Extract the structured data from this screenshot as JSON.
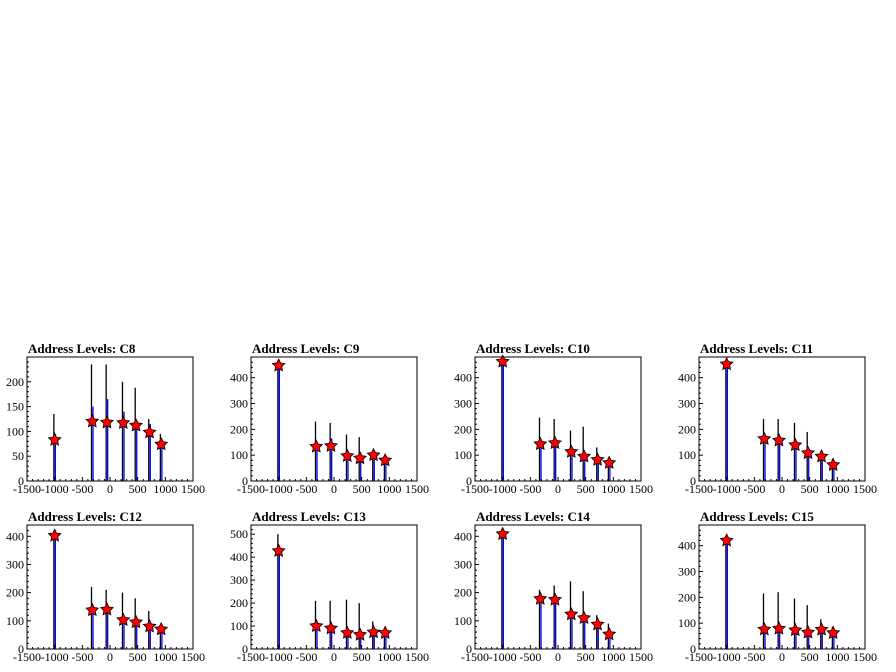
{
  "chart_data": [
    {
      "type": "bar",
      "title": "Address Levels: C8",
      "xlim": [
        -1500,
        1500
      ],
      "ylim": [
        0,
        250
      ],
      "xticks": [
        -1500,
        -1000,
        -500,
        0,
        500,
        1000,
        1500
      ],
      "yticks": [
        0,
        50,
        100,
        150,
        200
      ],
      "xtick_labels": [
        "-1500",
        "-1000",
        "-500",
        "0",
        "500",
        "1000",
        "1500"
      ],
      "ytick_labels": [
        "0",
        "50",
        "100",
        "150",
        "200"
      ],
      "peaks": [
        {
          "x": -1000,
          "black": 135,
          "blue": 95
        },
        {
          "x": -320,
          "black": 235,
          "blue": 150
        },
        {
          "x": -55,
          "black": 235,
          "blue": 165
        },
        {
          "x": 240,
          "black": 200,
          "blue": 140
        },
        {
          "x": 470,
          "black": 188,
          "blue": 115
        },
        {
          "x": 715,
          "black": 125,
          "blue": 115
        },
        {
          "x": 925,
          "black": 95,
          "blue": 85
        }
      ],
      "markers": [
        {
          "x": -1000,
          "y": 83
        },
        {
          "x": -320,
          "y": 120
        },
        {
          "x": -55,
          "y": 118
        },
        {
          "x": 240,
          "y": 117
        },
        {
          "x": 470,
          "y": 112
        },
        {
          "x": 715,
          "y": 98
        },
        {
          "x": 925,
          "y": 74
        }
      ]
    },
    {
      "type": "bar",
      "title": "Address Levels: C9",
      "xlim": [
        -1500,
        1500
      ],
      "ylim": [
        0,
        480
      ],
      "xticks": [
        -1500,
        -1000,
        -500,
        0,
        500,
        1000,
        1500
      ],
      "yticks": [
        0,
        100,
        200,
        300,
        400
      ],
      "xtick_labels": [
        "-1500",
        "-1000",
        "-500",
        "0",
        "500",
        "1000",
        "1500"
      ],
      "ytick_labels": [
        "0",
        "100",
        "200",
        "300",
        "400"
      ],
      "peaks": [
        {
          "x": -1000,
          "black": 450,
          "blue": 450
        },
        {
          "x": -320,
          "black": 230,
          "blue": 150
        },
        {
          "x": -55,
          "black": 225,
          "blue": 165
        },
        {
          "x": 240,
          "black": 180,
          "blue": 110
        },
        {
          "x": 470,
          "black": 170,
          "blue": 110
        },
        {
          "x": 715,
          "black": 110,
          "blue": 100
        },
        {
          "x": 925,
          "black": 90,
          "blue": 80
        }
      ],
      "markers": [
        {
          "x": -1000,
          "y": 447
        },
        {
          "x": -320,
          "y": 133
        },
        {
          "x": -55,
          "y": 136
        },
        {
          "x": 240,
          "y": 97
        },
        {
          "x": 470,
          "y": 88
        },
        {
          "x": 715,
          "y": 100
        },
        {
          "x": 925,
          "y": 80
        }
      ]
    },
    {
      "type": "bar",
      "title": "Address Levels: C10",
      "xlim": [
        -1500,
        1500
      ],
      "ylim": [
        0,
        480
      ],
      "xticks": [
        -1500,
        -1000,
        -500,
        0,
        500,
        1000,
        1500
      ],
      "yticks": [
        0,
        100,
        200,
        300,
        400
      ],
      "xtick_labels": [
        "-1500",
        "-1000",
        "-500",
        "0",
        "500",
        "1000",
        "1500"
      ],
      "ytick_labels": [
        "0",
        "100",
        "200",
        "300",
        "400"
      ],
      "peaks": [
        {
          "x": -1000,
          "black": 465,
          "blue": 465
        },
        {
          "x": -320,
          "black": 245,
          "blue": 155
        },
        {
          "x": -55,
          "black": 240,
          "blue": 160
        },
        {
          "x": 240,
          "black": 195,
          "blue": 125
        },
        {
          "x": 470,
          "black": 210,
          "blue": 105
        },
        {
          "x": 715,
          "black": 130,
          "blue": 85
        },
        {
          "x": 925,
          "black": 80,
          "blue": 70
        }
      ],
      "markers": [
        {
          "x": -1000,
          "y": 462
        },
        {
          "x": -320,
          "y": 143
        },
        {
          "x": -55,
          "y": 147
        },
        {
          "x": 240,
          "y": 113
        },
        {
          "x": 470,
          "y": 95
        },
        {
          "x": 715,
          "y": 82
        },
        {
          "x": 925,
          "y": 70
        }
      ]
    },
    {
      "type": "bar",
      "title": "Address Levels: C11",
      "xlim": [
        -1500,
        1500
      ],
      "ylim": [
        0,
        480
      ],
      "xticks": [
        -1500,
        -1000,
        -500,
        0,
        500,
        1000,
        1500
      ],
      "yticks": [
        0,
        100,
        200,
        300,
        400
      ],
      "xtick_labels": [
        "-1500",
        "-1000",
        "-500",
        "0",
        "500",
        "1000",
        "1500"
      ],
      "ytick_labels": [
        "0",
        "100",
        "200",
        "300",
        "400"
      ],
      "peaks": [
        {
          "x": -1000,
          "black": 455,
          "blue": 455
        },
        {
          "x": -320,
          "black": 240,
          "blue": 165
        },
        {
          "x": -55,
          "black": 240,
          "blue": 165
        },
        {
          "x": 240,
          "black": 225,
          "blue": 145
        },
        {
          "x": 470,
          "black": 190,
          "blue": 110
        },
        {
          "x": 715,
          "black": 115,
          "blue": 100
        },
        {
          "x": 925,
          "black": 85,
          "blue": 65
        }
      ],
      "markers": [
        {
          "x": -1000,
          "y": 452
        },
        {
          "x": -320,
          "y": 163
        },
        {
          "x": -55,
          "y": 157
        },
        {
          "x": 240,
          "y": 139
        },
        {
          "x": 470,
          "y": 108
        },
        {
          "x": 715,
          "y": 95
        },
        {
          "x": 925,
          "y": 62
        }
      ]
    },
    {
      "type": "bar",
      "title": "Address Levels: C12",
      "xlim": [
        -1500,
        1500
      ],
      "ylim": [
        0,
        440
      ],
      "xticks": [
        -1500,
        -1000,
        -500,
        0,
        500,
        1000,
        1500
      ],
      "yticks": [
        0,
        100,
        200,
        300,
        400
      ],
      "xtick_labels": [
        "-1500",
        "-1000",
        "-500",
        "0",
        "500",
        "1000",
        "1500"
      ],
      "ytick_labels": [
        "0",
        "100",
        "200",
        "300",
        "400"
      ],
      "peaks": [
        {
          "x": -1000,
          "black": 405,
          "blue": 405
        },
        {
          "x": -320,
          "black": 220,
          "blue": 145
        },
        {
          "x": -55,
          "black": 210,
          "blue": 145
        },
        {
          "x": 240,
          "black": 200,
          "blue": 110
        },
        {
          "x": 470,
          "black": 180,
          "blue": 100
        },
        {
          "x": 715,
          "black": 135,
          "blue": 85
        },
        {
          "x": 925,
          "black": 80,
          "blue": 70
        }
      ],
      "markers": [
        {
          "x": -1000,
          "y": 402
        },
        {
          "x": -320,
          "y": 138
        },
        {
          "x": -55,
          "y": 140
        },
        {
          "x": 240,
          "y": 103
        },
        {
          "x": 470,
          "y": 95
        },
        {
          "x": 715,
          "y": 80
        },
        {
          "x": 925,
          "y": 70
        }
      ]
    },
    {
      "type": "bar",
      "title": "Address Levels: C13",
      "xlim": [
        -1500,
        1500
      ],
      "ylim": [
        0,
        540
      ],
      "xticks": [
        -1500,
        -1000,
        -500,
        0,
        500,
        1000,
        1500
      ],
      "yticks": [
        0,
        100,
        200,
        300,
        400,
        500
      ],
      "xtick_labels": [
        "-1500",
        "-1000",
        "-500",
        "0",
        "500",
        "1000",
        "1500"
      ],
      "ytick_labels": [
        "0",
        "100",
        "200",
        "300",
        "400",
        "500"
      ],
      "peaks": [
        {
          "x": -1000,
          "black": 500,
          "blue": 430
        },
        {
          "x": -320,
          "black": 210,
          "blue": 110
        },
        {
          "x": -55,
          "black": 210,
          "blue": 95
        },
        {
          "x": 240,
          "black": 215,
          "blue": 80
        },
        {
          "x": 470,
          "black": 200,
          "blue": 70
        },
        {
          "x": 715,
          "black": 120,
          "blue": 80
        },
        {
          "x": 925,
          "black": 90,
          "blue": 75
        }
      ],
      "markers": [
        {
          "x": -1000,
          "y": 427
        },
        {
          "x": -320,
          "y": 100
        },
        {
          "x": -55,
          "y": 90
        },
        {
          "x": 240,
          "y": 70
        },
        {
          "x": 470,
          "y": 62
        },
        {
          "x": 715,
          "y": 73
        },
        {
          "x": 925,
          "y": 70
        }
      ]
    },
    {
      "type": "bar",
      "title": "Address Levels: C14",
      "xlim": [
        -1500,
        1500
      ],
      "ylim": [
        0,
        440
      ],
      "xticks": [
        -1500,
        -1000,
        -500,
        0,
        500,
        1000,
        1500
      ],
      "yticks": [
        0,
        100,
        200,
        300,
        400
      ],
      "xtick_labels": [
        "-1500",
        "-1000",
        "-500",
        "0",
        "500",
        "1000",
        "1500"
      ],
      "ytick_labels": [
        "0",
        "100",
        "200",
        "300",
        "400"
      ],
      "peaks": [
        {
          "x": -1000,
          "black": 410,
          "blue": 410
        },
        {
          "x": -320,
          "black": 210,
          "blue": 185
        },
        {
          "x": -55,
          "black": 225,
          "blue": 180
        },
        {
          "x": 240,
          "black": 240,
          "blue": 130
        },
        {
          "x": 470,
          "black": 205,
          "blue": 115
        },
        {
          "x": 715,
          "black": 120,
          "blue": 95
        },
        {
          "x": 925,
          "black": 90,
          "blue": 60
        }
      ],
      "markers": [
        {
          "x": -1000,
          "y": 408
        },
        {
          "x": -320,
          "y": 178
        },
        {
          "x": -55,
          "y": 175
        },
        {
          "x": 240,
          "y": 123
        },
        {
          "x": 470,
          "y": 110
        },
        {
          "x": 715,
          "y": 87
        },
        {
          "x": 925,
          "y": 52
        }
      ]
    },
    {
      "type": "bar",
      "title": "Address Levels: C15",
      "xlim": [
        -1500,
        1500
      ],
      "ylim": [
        0,
        480
      ],
      "xticks": [
        -1500,
        -1000,
        -500,
        0,
        500,
        1000,
        1500
      ],
      "yticks": [
        0,
        100,
        200,
        300,
        400
      ],
      "xtick_labels": [
        "-1500",
        "-1000",
        "-500",
        "0",
        "500",
        "1000",
        "1500"
      ],
      "ytick_labels": [
        "0",
        "100",
        "200",
        "300",
        "400"
      ],
      "peaks": [
        {
          "x": -1000,
          "black": 425,
          "blue": 425
        },
        {
          "x": -320,
          "black": 215,
          "blue": 90
        },
        {
          "x": -55,
          "black": 220,
          "blue": 90
        },
        {
          "x": 240,
          "black": 195,
          "blue": 85
        },
        {
          "x": 470,
          "black": 170,
          "blue": 75
        },
        {
          "x": 715,
          "black": 115,
          "blue": 80
        },
        {
          "x": 925,
          "black": 85,
          "blue": 70
        }
      ],
      "markers": [
        {
          "x": -1000,
          "y": 420
        },
        {
          "x": -320,
          "y": 76
        },
        {
          "x": -55,
          "y": 79
        },
        {
          "x": 240,
          "y": 73
        },
        {
          "x": 470,
          "y": 64
        },
        {
          "x": 715,
          "y": 75
        },
        {
          "x": 925,
          "y": 62
        }
      ]
    }
  ]
}
